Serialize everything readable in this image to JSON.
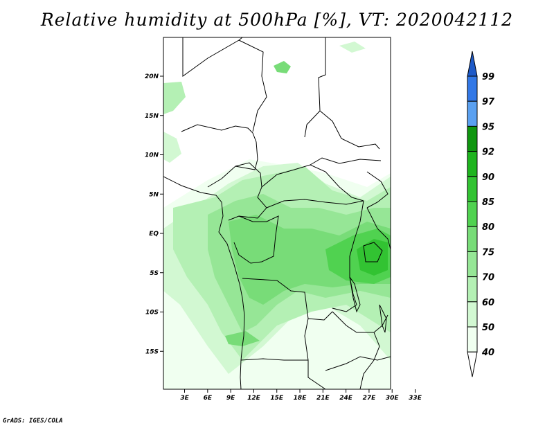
{
  "title": "Relative humidity at 500hPa [%], VT: 2020042112",
  "credit": "GrADS: IGES/COLA",
  "map": {
    "variable": "Relative humidity",
    "level": "500hPa",
    "units": "%",
    "valid_time": "2020042112",
    "lat_labels": [
      "20N",
      "15N",
      "10N",
      "5N",
      "EQ",
      "5S",
      "10S",
      "15S"
    ],
    "lat_values": [
      20,
      15,
      10,
      5,
      0,
      -5,
      -10,
      -15
    ],
    "lon_labels": [
      "3E",
      "6E",
      "9E",
      "12E",
      "15E",
      "18E",
      "21E",
      "24E",
      "27E",
      "30E",
      "33E"
    ],
    "lon_values": [
      3,
      6,
      9,
      12,
      15,
      18,
      21,
      24,
      27,
      30,
      33
    ]
  },
  "colorbar": {
    "levels": [
      "40",
      "50",
      "60",
      "70",
      "75",
      "80",
      "85",
      "90",
      "92",
      "95",
      "97",
      "99"
    ],
    "colors": [
      "#f0fff0",
      "#d2f8d2",
      "#b4f0b4",
      "#96e696",
      "#78dc78",
      "#50d250",
      "#32c332",
      "#1eb41e",
      "#0f960f",
      "#5aa0f0",
      "#3278e6",
      "#1e5ad2"
    ],
    "lower_color": "#ffffff",
    "upper_color": "#1e5ac8"
  }
}
